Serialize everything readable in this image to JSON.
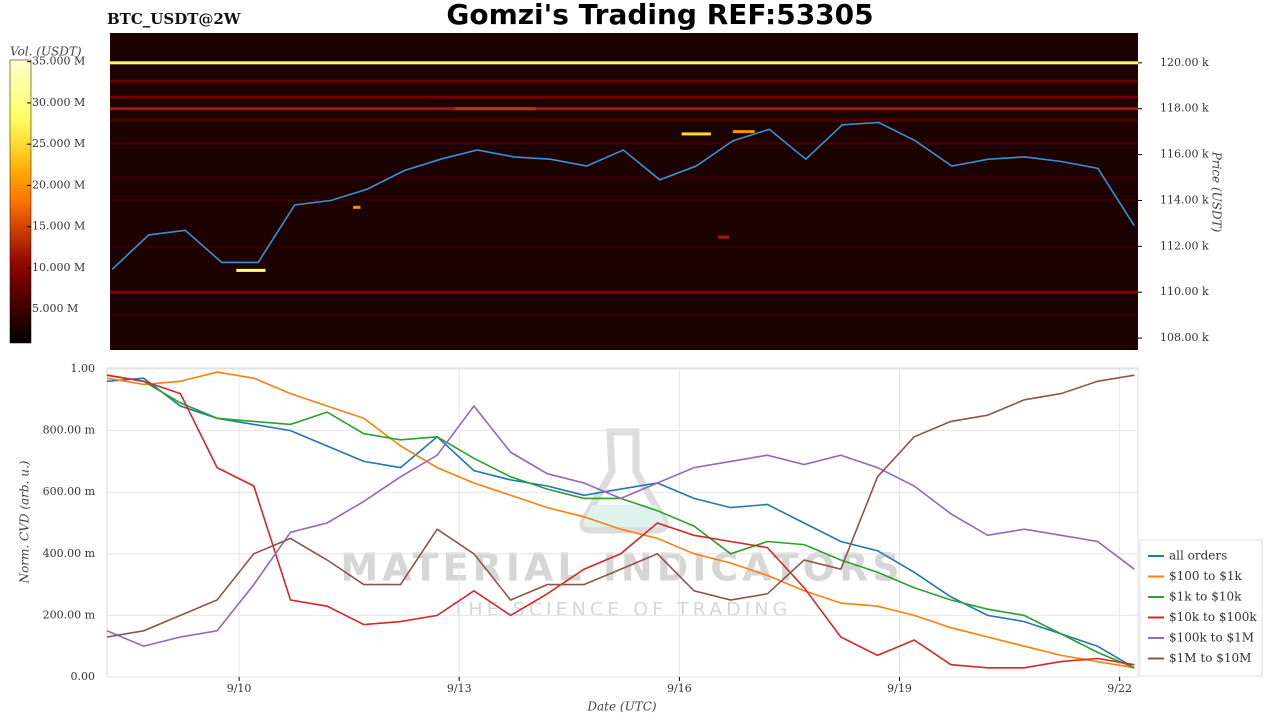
{
  "chart_data": [
    {
      "type": "line",
      "title": "Gomzi's Trading REF:53305",
      "subtitle": "BTC_USDT@2W",
      "y_label": "Price (USDT)",
      "colorbar_label": "Vol. (USDT)",
      "color": "#3b8fd4",
      "x": [
        8.2,
        8.7,
        9.2,
        9.7,
        10.2,
        10.7,
        11.2,
        11.7,
        12.2,
        12.7,
        13.2,
        13.7,
        14.2,
        14.7,
        15.2,
        15.7,
        16.2,
        16.7,
        17.2,
        17.7,
        18.2,
        18.7,
        19.2,
        19.7,
        20.2,
        20.7,
        21.2,
        21.7,
        22.2
      ],
      "values": [
        111000,
        112500,
        112700,
        111300,
        111300,
        113800,
        114000,
        114500,
        115300,
        115800,
        116200,
        115900,
        115800,
        115500,
        116200,
        114900,
        115500,
        116600,
        117100,
        115800,
        117300,
        117400,
        116600,
        115500,
        115800,
        115900,
        115700,
        115400,
        112900
      ],
      "xlim": [
        8.17,
        22.25
      ],
      "ylim": [
        107480,
        121300
      ],
      "yticks": [
        {
          "value": 108000,
          "label": "108.00 k"
        },
        {
          "value": 110000,
          "label": "110.00 k"
        },
        {
          "value": 112000,
          "label": "112.00 k"
        },
        {
          "value": 114000,
          "label": "114.00 k"
        },
        {
          "value": 116000,
          "label": "116.00 k"
        },
        {
          "value": 118000,
          "label": "118.00 k"
        },
        {
          "value": 120000,
          "label": "120.00 k"
        }
      ],
      "clim": [
        900000,
        35200000
      ],
      "cticks": [
        {
          "value": 5000000,
          "label": "5.000 M"
        },
        {
          "value": 10000000,
          "label": "10.000 M"
        },
        {
          "value": 15000000,
          "label": "15.000 M"
        },
        {
          "value": 20000000,
          "label": "20.000 M"
        },
        {
          "value": 25000000,
          "label": "25.000 M"
        },
        {
          "value": 30000000,
          "label": "30.000 M"
        },
        {
          "value": 35000000,
          "label": "35.000 M"
        }
      ],
      "levels": [
        {
          "price": 120000,
          "volume": 28000000
        },
        {
          "price": 119200,
          "volume": 8000000
        },
        {
          "price": 118500,
          "volume": 9000000
        },
        {
          "price": 118000,
          "volume": 12000000
        },
        {
          "price": 117500,
          "volume": 6000000
        },
        {
          "price": 116500,
          "volume": 5000000
        },
        {
          "price": 115000,
          "volume": 4000000
        },
        {
          "price": 114000,
          "volume": 4000000
        },
        {
          "price": 113000,
          "volume": 3000000
        },
        {
          "price": 112000,
          "volume": 4000000
        },
        {
          "price": 111000,
          "volume": 3000000
        },
        {
          "price": 110000,
          "volume": 10000000
        },
        {
          "price": 109000,
          "volume": 4000000
        },
        {
          "price": 108000,
          "volume": 3000000
        }
      ],
      "walls": [
        {
          "x": [
            9.9,
            10.3
          ],
          "price": 110950,
          "volume": 30000000
        },
        {
          "x": [
            11.5,
            11.6
          ],
          "price": 113700,
          "volume": 20000000
        },
        {
          "x": [
            12.9,
            14.0
          ],
          "price": 118000,
          "volume": 14000000
        },
        {
          "x": [
            16.0,
            16.4
          ],
          "price": 116900,
          "volume": 25000000
        },
        {
          "x": [
            16.7,
            17.0
          ],
          "price": 117000,
          "volume": 20000000
        },
        {
          "x": [
            16.5,
            16.65
          ],
          "price": 112400,
          "volume": 12000000
        }
      ]
    },
    {
      "type": "line",
      "x_label": "Date (UTC)",
      "y_label": "Norm. CVD (arb. u.)",
      "watermark": [
        "MATERIAL INDICATORS",
        "THE SCIENCE OF TRADING"
      ],
      "x": [
        8.2,
        8.7,
        9.2,
        9.7,
        10.2,
        10.7,
        11.2,
        11.7,
        12.2,
        12.7,
        13.2,
        13.7,
        14.2,
        14.7,
        15.2,
        15.7,
        16.2,
        16.7,
        17.2,
        17.7,
        18.2,
        18.7,
        19.2,
        19.7,
        20.2,
        20.7,
        21.2,
        21.7,
        22.2
      ],
      "xlim": [
        8.2,
        22.25
      ],
      "ylim": [
        0,
        1
      ],
      "grid": true,
      "legend": "lower right",
      "xticks": [
        {
          "value": 10,
          "label": "9/10"
        },
        {
          "value": 13,
          "label": "9/13"
        },
        {
          "value": 16,
          "label": "9/16"
        },
        {
          "value": 19,
          "label": "9/19"
        },
        {
          "value": 22,
          "label": "9/22"
        }
      ],
      "yticks": [
        {
          "value": 0,
          "label": "0.00"
        },
        {
          "value": 0.2,
          "label": "200.00 m"
        },
        {
          "value": 0.4,
          "label": "400.00 m"
        },
        {
          "value": 0.6,
          "label": "600.00 m"
        },
        {
          "value": 0.8,
          "label": "800.00 m"
        },
        {
          "value": 1,
          "label": "1.00"
        }
      ],
      "series": [
        {
          "name": "all orders",
          "color": "#1f77b4",
          "values": [
            0.96,
            0.97,
            0.88,
            0.84,
            0.82,
            0.8,
            0.75,
            0.7,
            0.68,
            0.78,
            0.67,
            0.64,
            0.62,
            0.59,
            0.61,
            0.63,
            0.58,
            0.55,
            0.56,
            0.5,
            0.44,
            0.41,
            0.34,
            0.26,
            0.2,
            0.18,
            0.14,
            0.1,
            0.03
          ]
        },
        {
          "name": "$100 to $1k",
          "color": "#ff7f0e",
          "values": [
            0.97,
            0.95,
            0.96,
            0.99,
            0.97,
            0.92,
            0.88,
            0.84,
            0.75,
            0.68,
            0.63,
            0.59,
            0.55,
            0.52,
            0.48,
            0.45,
            0.4,
            0.37,
            0.33,
            0.28,
            0.24,
            0.23,
            0.2,
            0.16,
            0.13,
            0.1,
            0.07,
            0.05,
            0.03
          ]
        },
        {
          "name": "$1k to $10k",
          "color": "#2ca02c",
          "values": [
            0.98,
            0.96,
            0.89,
            0.84,
            0.83,
            0.82,
            0.86,
            0.79,
            0.77,
            0.78,
            0.71,
            0.65,
            0.61,
            0.58,
            0.58,
            0.54,
            0.49,
            0.4,
            0.44,
            0.43,
            0.38,
            0.34,
            0.29,
            0.25,
            0.22,
            0.2,
            0.14,
            0.08,
            0.03
          ]
        },
        {
          "name": "$10k to $100k",
          "color": "#d62728",
          "values": [
            0.98,
            0.96,
            0.92,
            0.68,
            0.62,
            0.25,
            0.23,
            0.17,
            0.18,
            0.2,
            0.28,
            0.2,
            0.27,
            0.35,
            0.4,
            0.5,
            0.46,
            0.44,
            0.42,
            0.29,
            0.13,
            0.07,
            0.12,
            0.04,
            0.03,
            0.03,
            0.05,
            0.06,
            0.04
          ]
        },
        {
          "name": "$100k to $1M",
          "color": "#9467bd",
          "values": [
            0.15,
            0.1,
            0.13,
            0.15,
            0.3,
            0.47,
            0.5,
            0.57,
            0.65,
            0.72,
            0.88,
            0.73,
            0.66,
            0.63,
            0.58,
            0.63,
            0.68,
            0.7,
            0.72,
            0.69,
            0.72,
            0.68,
            0.62,
            0.53,
            0.46,
            0.48,
            0.46,
            0.44,
            0.35
          ]
        },
        {
          "name": "$1M to $10M",
          "color": "#8c564b",
          "values": [
            0.13,
            0.15,
            0.2,
            0.25,
            0.4,
            0.45,
            0.38,
            0.3,
            0.3,
            0.48,
            0.4,
            0.25,
            0.3,
            0.3,
            0.35,
            0.4,
            0.28,
            0.25,
            0.27,
            0.38,
            0.35,
            0.65,
            0.78,
            0.83,
            0.85,
            0.9,
            0.92,
            0.96,
            0.98
          ]
        }
      ]
    }
  ]
}
